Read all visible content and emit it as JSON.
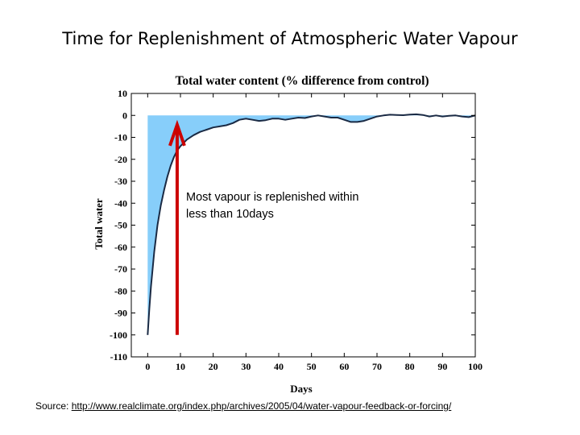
{
  "slide": {
    "title": "Time for Replenishment of Atmospheric Water Vapour",
    "annotation_line1": "Most vapour  is replenished within",
    "annotation_line2": "less than 10days",
    "source_prefix": "Source: ",
    "source_link": "http://www.realclimate.org/index.php/archives/2005/04/water-vapour-feedback-or-forcing/"
  },
  "chart_data": {
    "type": "area",
    "title": "Total water content (% difference from control)",
    "xlabel": "Days",
    "ylabel": "Total water",
    "xlim": [
      -5,
      100
    ],
    "ylim": [
      -110,
      10
    ],
    "x_ticks": [
      0,
      10,
      20,
      30,
      40,
      50,
      60,
      70,
      80,
      90,
      100
    ],
    "y_ticks": [
      10,
      0,
      -10,
      -20,
      -30,
      -40,
      -50,
      -60,
      -70,
      -80,
      -90,
      -100,
      -110
    ],
    "grid": false,
    "series": [
      {
        "color": "#1a2a44",
        "fill_color": "#87cefa",
        "x": [
          0,
          0.5,
          1,
          2,
          3,
          4,
          5,
          6,
          7,
          8,
          9,
          10,
          12,
          14,
          16,
          18,
          20,
          22,
          24,
          26,
          28,
          30,
          32,
          34,
          36,
          38,
          40,
          42,
          44,
          46,
          48,
          50,
          52,
          54,
          56,
          58,
          60,
          62,
          64,
          66,
          68,
          70,
          72,
          74,
          76,
          78,
          80,
          82,
          84,
          86,
          88,
          90,
          92,
          94,
          96,
          98,
          100
        ],
        "y": [
          -100,
          -88,
          -78,
          -62,
          -50,
          -41,
          -34,
          -28,
          -23,
          -19,
          -16,
          -14,
          -11,
          -9,
          -7.5,
          -6.5,
          -5.5,
          -5,
          -4.5,
          -3.5,
          -2,
          -1.5,
          -2,
          -2.5,
          -2.2,
          -1.5,
          -1.5,
          -2,
          -1.5,
          -1,
          -1.2,
          -0.5,
          0,
          -0.5,
          -1,
          -1,
          -2,
          -3,
          -3,
          -2.5,
          -1.5,
          -0.5,
          0,
          0.3,
          0.2,
          0.1,
          0.4,
          0.5,
          0.2,
          -0.5,
          0,
          -0.5,
          -0.2,
          0,
          -0.5,
          -0.8,
          0
        ]
      }
    ],
    "arrow_color": "#cc0000"
  }
}
